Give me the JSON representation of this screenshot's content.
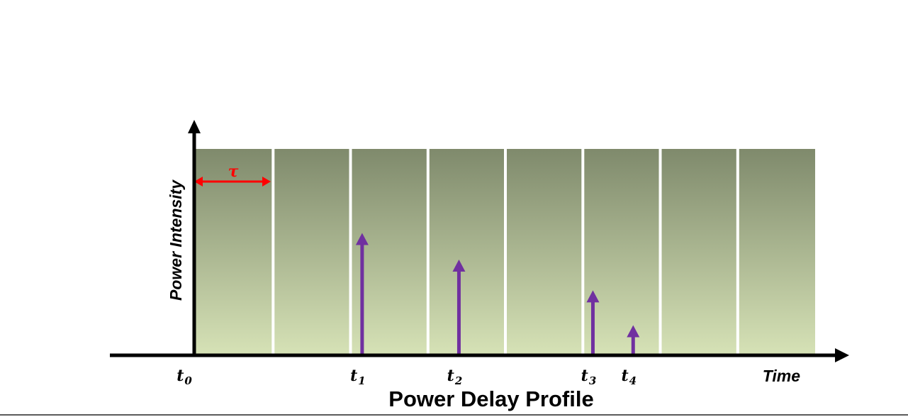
{
  "title": "Power Delay Profile",
  "axes": {
    "y_label": "Power Intensity",
    "x_label": "Time"
  },
  "bin_width_label": "τ",
  "bin_count": 8,
  "time_markers": [
    {
      "base": "t",
      "sub": "0",
      "bin_position": 0.0
    },
    {
      "base": "t",
      "sub": "1",
      "bin_position": 2.15
    },
    {
      "base": "t",
      "sub": "2",
      "bin_position": 3.4
    },
    {
      "base": "t",
      "sub": "3",
      "bin_position": 5.13
    },
    {
      "base": "t",
      "sub": "4",
      "bin_position": 5.65
    }
  ],
  "impulses": [
    {
      "marker": "t1",
      "bin_position": 2.15,
      "power_fraction": 0.59
    },
    {
      "marker": "t2",
      "bin_position": 3.4,
      "power_fraction": 0.46
    },
    {
      "marker": "t3",
      "bin_position": 5.13,
      "power_fraction": 0.31
    },
    {
      "marker": "t4",
      "bin_position": 5.65,
      "power_fraction": 0.14
    }
  ],
  "colors": {
    "bin_top": "#7f8a6c",
    "bin_bottom": "#d6e2b6",
    "separator": "#ffffff",
    "axis": "#000000",
    "impulse": "#7030a0",
    "tau_marker": "#ff0000",
    "text": "#000000"
  }
}
